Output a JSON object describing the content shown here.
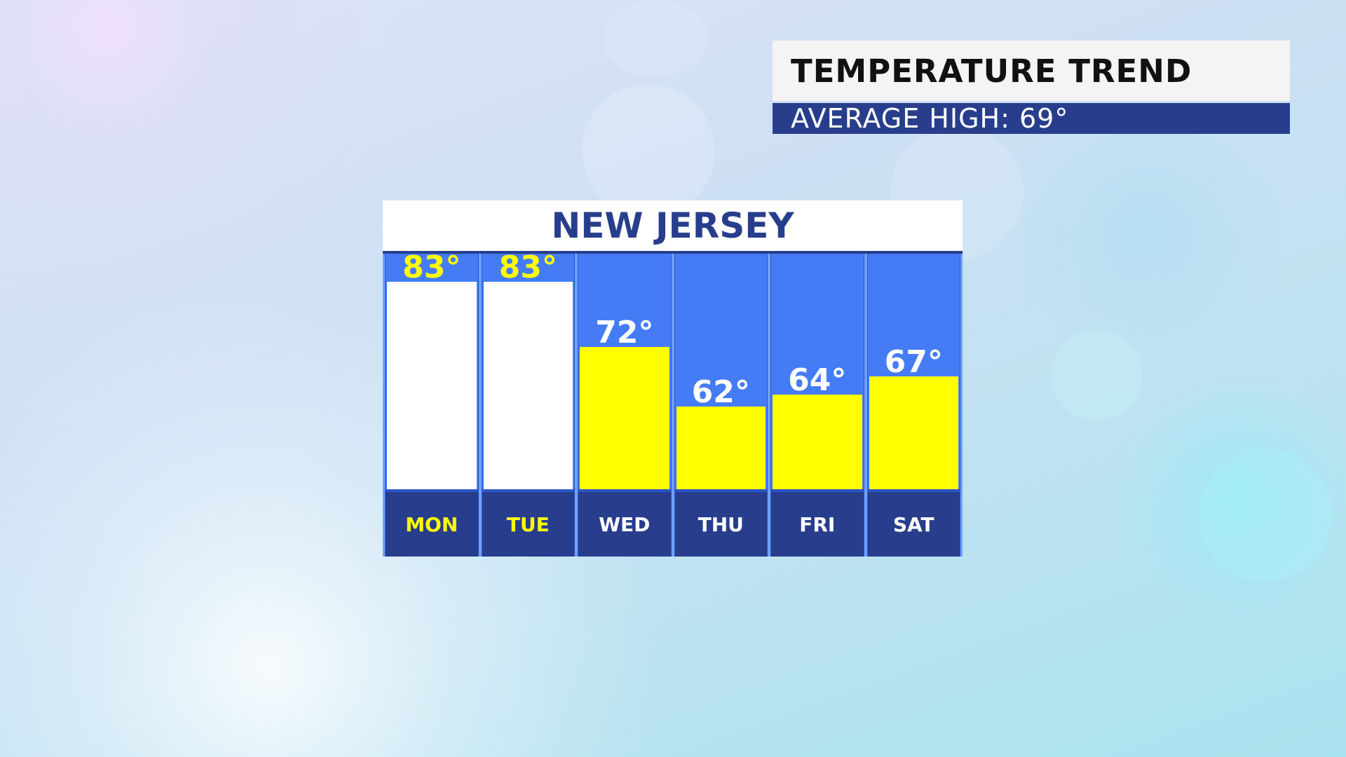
{
  "header": {
    "title": "TEMPERATURE TREND",
    "subtitle": "AVERAGE HIGH:  69°"
  },
  "colors": {
    "column_bg": "#457cf6",
    "header_navy": "#283e8c",
    "bar_white": "#ffffff",
    "bar_yellow": "#ffff00",
    "label_yellow": "#ffff00",
    "label_white": "#ffffff"
  },
  "chart_data": {
    "type": "bar",
    "title": "NEW JERSEY",
    "xlabel": "",
    "ylabel": "",
    "categories": [
      "MON",
      "TUE",
      "WED",
      "THU",
      "FRI",
      "SAT"
    ],
    "values": [
      83,
      83,
      72,
      62,
      64,
      67
    ],
    "value_labels": [
      "83°",
      "83°",
      "72°",
      "62°",
      "64°",
      "67°"
    ],
    "bar_colors": [
      "#ffffff",
      "#ffffff",
      "#ffff00",
      "#ffff00",
      "#ffff00",
      "#ffff00"
    ],
    "label_colors": [
      "#ffff00",
      "#ffff00",
      "#ffffff",
      "#ffffff",
      "#ffffff",
      "#ffffff"
    ],
    "ylim": [
      48,
      87
    ],
    "grid": false,
    "legend": "none"
  }
}
